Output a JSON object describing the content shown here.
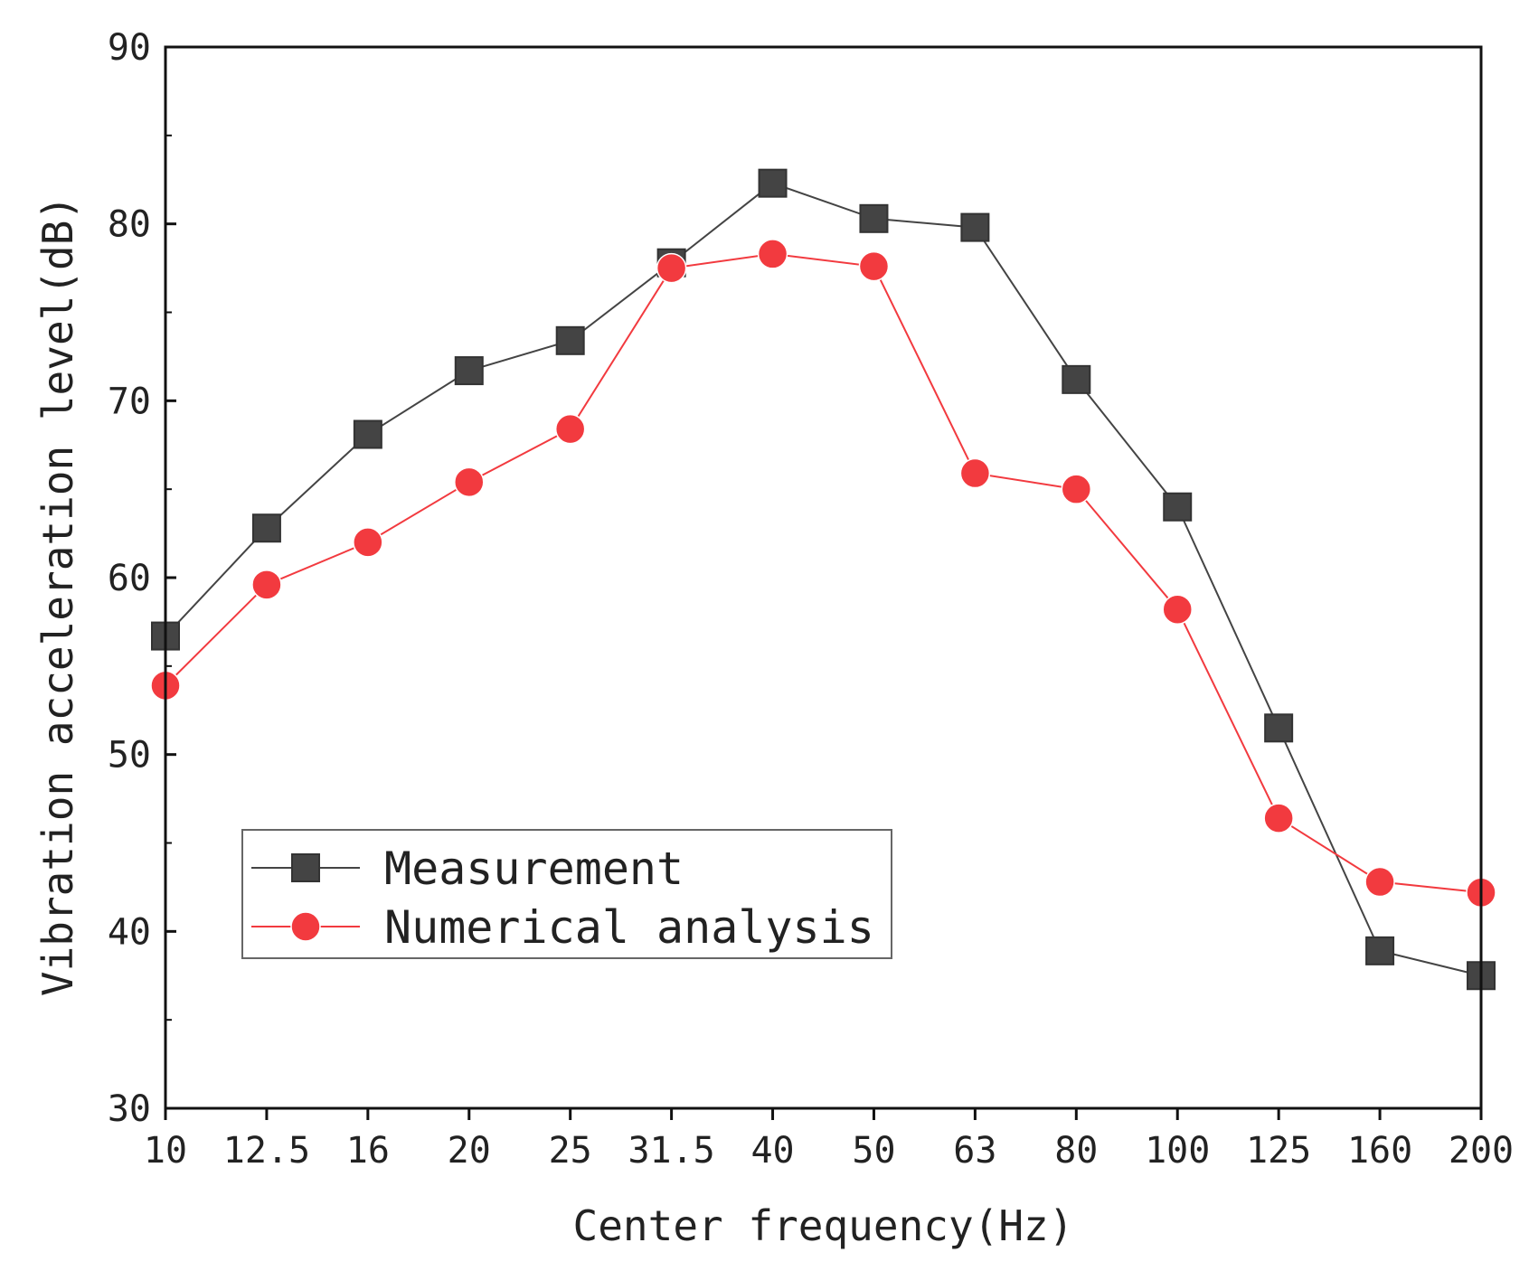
{
  "chart_data": {
    "type": "line",
    "title": "",
    "xlabel": "Center frequency(Hz)",
    "ylabel": "Vibration acceleration level(dB)",
    "categories": [
      "10",
      "12.5",
      "16",
      "20",
      "25",
      "31.5",
      "40",
      "50",
      "63",
      "80",
      "100",
      "125",
      "160",
      "200"
    ],
    "ylim": [
      30,
      90
    ],
    "yticks": [
      30,
      40,
      50,
      60,
      70,
      80,
      90
    ],
    "legend_position": "lower-left",
    "series": [
      {
        "name": "Measurement",
        "marker": "square",
        "color": "#444444",
        "values": [
          56.7,
          62.8,
          68.1,
          71.7,
          73.4,
          77.8,
          82.3,
          80.3,
          79.8,
          71.2,
          64.0,
          51.5,
          38.9,
          37.5
        ]
      },
      {
        "name": "Numerical analysis",
        "marker": "circle",
        "color": "#f23a3f",
        "values": [
          53.9,
          59.6,
          62.0,
          65.4,
          68.4,
          77.5,
          78.3,
          77.6,
          65.9,
          65.0,
          58.2,
          46.4,
          42.8,
          42.2
        ]
      }
    ]
  }
}
